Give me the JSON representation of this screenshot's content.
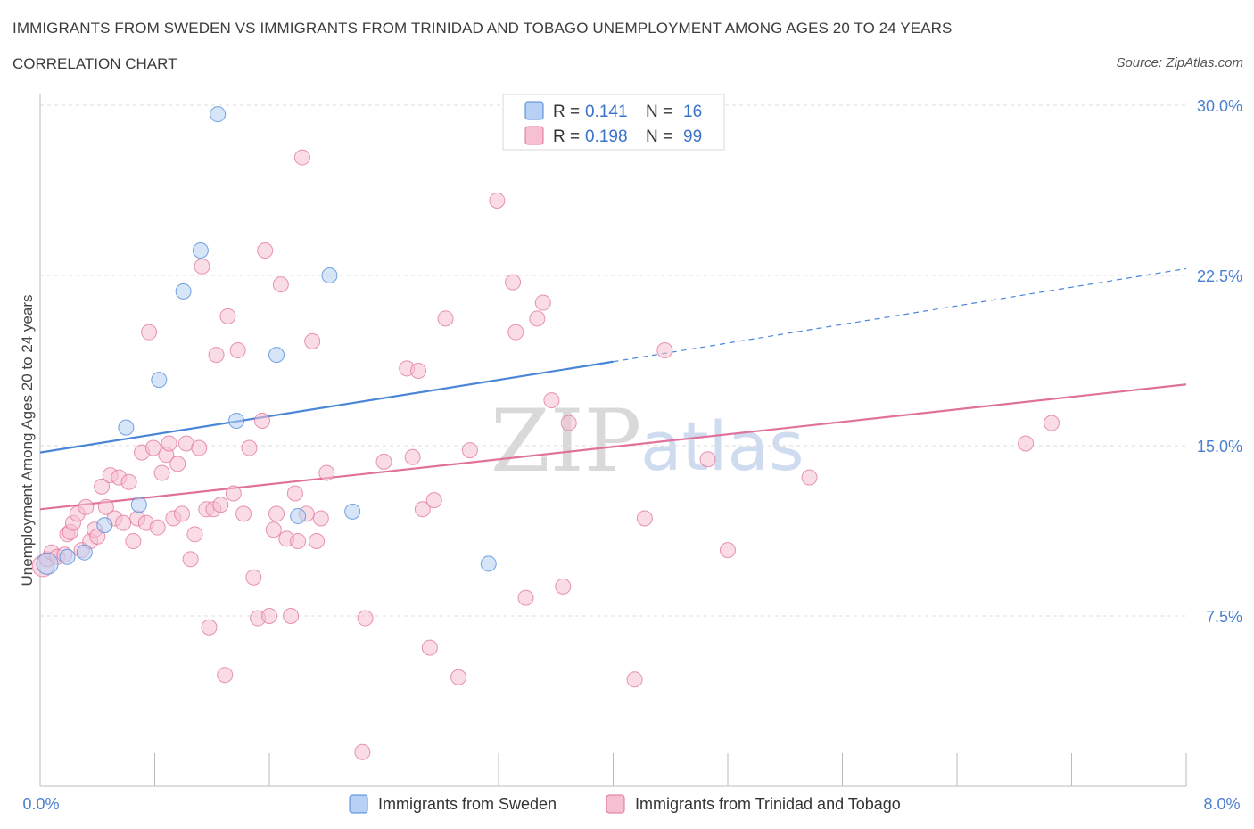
{
  "header": {
    "title": "IMMIGRANTS FROM SWEDEN VS IMMIGRANTS FROM TRINIDAD AND TOBAGO UNEMPLOYMENT AMONG AGES 20 TO 24 YEARS",
    "subtitle": "CORRELATION CHART",
    "source": "Source: ZipAtlas.com"
  },
  "watermark": {
    "zip": "ZIP",
    "atlas": "atlas"
  },
  "colors": {
    "sweden": "#4a86d8",
    "sweden_fill": "#b7d0f3",
    "trinidad": "#e0729a",
    "trinidad_fill": "#f6bfd2",
    "axis_text": "#4a7fcf"
  },
  "legend": {
    "rows": [
      {
        "r_label": "R =",
        "r_value": "0.141",
        "n_label": "N =",
        "n_value": "16"
      },
      {
        "r_label": "R =",
        "r_value": "0.198",
        "n_label": "N =",
        "n_value": "99"
      }
    ]
  },
  "chart_data": {
    "type": "scatter",
    "title": "IMMIGRANTS FROM SWEDEN VS IMMIGRANTS FROM TRINIDAD AND TOBAGO UNEMPLOYMENT AMONG AGES 20 TO 24 YEARS",
    "ylabel": "Unemployment Among Ages 20 to 24 years",
    "xlabel": "",
    "xlim": [
      0,
      8
    ],
    "ylim": [
      0,
      30
    ],
    "x_tick_labels": [
      "0.0%",
      "8.0%"
    ],
    "y_ticks": [
      7.5,
      15.0,
      22.5,
      30.0
    ],
    "y_tick_labels": [
      "7.5%",
      "15.0%",
      "22.5%",
      "30.0%"
    ],
    "grid": true,
    "legend_position": "bottom",
    "series": [
      {
        "name": "Immigrants from Sweden",
        "R": 0.141,
        "N": 16,
        "trend": {
          "x0": 0.0,
          "y0": 14.7,
          "x1": 4.0,
          "y1": 18.7,
          "dash_to_x": 8.0,
          "dash_to_y": 22.8
        },
        "points": [
          [
            0.05,
            9.8
          ],
          [
            0.19,
            10.1
          ],
          [
            0.31,
            10.3
          ],
          [
            0.45,
            11.5
          ],
          [
            0.6,
            15.8
          ],
          [
            0.69,
            12.4
          ],
          [
            0.83,
            17.9
          ],
          [
            1.0,
            21.8
          ],
          [
            1.12,
            23.6
          ],
          [
            1.24,
            29.6
          ],
          [
            1.37,
            16.1
          ],
          [
            1.65,
            19.0
          ],
          [
            1.8,
            11.9
          ],
          [
            2.02,
            22.5
          ],
          [
            2.18,
            12.1
          ],
          [
            3.13,
            9.8
          ]
        ]
      },
      {
        "name": "Immigrants from Trinidad and Tobago",
        "R": 0.198,
        "N": 99,
        "trend": {
          "x0": 0.0,
          "y0": 12.2,
          "x1": 8.0,
          "y1": 17.7
        },
        "points": [
          [
            0.02,
            9.7
          ],
          [
            0.05,
            10.0
          ],
          [
            0.08,
            10.3
          ],
          [
            0.12,
            10.1
          ],
          [
            0.17,
            10.2
          ],
          [
            0.19,
            11.1
          ],
          [
            0.21,
            11.2
          ],
          [
            0.23,
            11.6
          ],
          [
            0.26,
            12.0
          ],
          [
            0.29,
            10.4
          ],
          [
            0.32,
            12.3
          ],
          [
            0.35,
            10.8
          ],
          [
            0.38,
            11.3
          ],
          [
            0.4,
            11.0
          ],
          [
            0.43,
            13.2
          ],
          [
            0.46,
            12.3
          ],
          [
            0.49,
            13.7
          ],
          [
            0.52,
            11.8
          ],
          [
            0.55,
            13.6
          ],
          [
            0.58,
            11.6
          ],
          [
            0.62,
            13.4
          ],
          [
            0.65,
            10.8
          ],
          [
            0.68,
            11.8
          ],
          [
            0.71,
            14.7
          ],
          [
            0.74,
            11.6
          ],
          [
            0.76,
            20.0
          ],
          [
            0.79,
            14.9
          ],
          [
            0.82,
            11.4
          ],
          [
            0.85,
            13.8
          ],
          [
            0.88,
            14.6
          ],
          [
            0.9,
            15.1
          ],
          [
            0.93,
            11.8
          ],
          [
            0.96,
            14.2
          ],
          [
            0.99,
            12.0
          ],
          [
            1.02,
            15.1
          ],
          [
            1.05,
            10.0
          ],
          [
            1.08,
            11.1
          ],
          [
            1.11,
            14.9
          ],
          [
            1.13,
            22.9
          ],
          [
            1.16,
            12.2
          ],
          [
            1.18,
            7.0
          ],
          [
            1.21,
            12.2
          ],
          [
            1.23,
            19.0
          ],
          [
            1.26,
            12.4
          ],
          [
            1.29,
            4.9
          ],
          [
            1.31,
            20.7
          ],
          [
            1.35,
            12.9
          ],
          [
            1.38,
            19.2
          ],
          [
            1.42,
            12.0
          ],
          [
            1.46,
            14.9
          ],
          [
            1.49,
            9.2
          ],
          [
            1.52,
            7.4
          ],
          [
            1.55,
            16.1
          ],
          [
            1.57,
            23.6
          ],
          [
            1.6,
            7.5
          ],
          [
            1.63,
            11.3
          ],
          [
            1.65,
            12.0
          ],
          [
            1.68,
            22.1
          ],
          [
            1.72,
            10.9
          ],
          [
            1.75,
            7.5
          ],
          [
            1.78,
            12.9
          ],
          [
            1.8,
            10.8
          ],
          [
            1.83,
            27.7
          ],
          [
            1.86,
            12.0
          ],
          [
            1.9,
            19.6
          ],
          [
            1.93,
            10.8
          ],
          [
            1.96,
            11.8
          ],
          [
            2.0,
            13.8
          ],
          [
            2.25,
            1.5
          ],
          [
            2.27,
            7.4
          ],
          [
            2.4,
            14.3
          ],
          [
            2.56,
            18.4
          ],
          [
            2.6,
            14.5
          ],
          [
            2.64,
            18.3
          ],
          [
            2.67,
            12.2
          ],
          [
            2.72,
            6.1
          ],
          [
            2.75,
            12.6
          ],
          [
            2.83,
            20.6
          ],
          [
            2.92,
            4.8
          ],
          [
            3.0,
            14.8
          ],
          [
            3.19,
            25.8
          ],
          [
            3.3,
            22.2
          ],
          [
            3.32,
            20.0
          ],
          [
            3.39,
            8.3
          ],
          [
            3.47,
            20.6
          ],
          [
            3.51,
            21.3
          ],
          [
            3.57,
            17.0
          ],
          [
            3.65,
            8.8
          ],
          [
            3.69,
            16.0
          ],
          [
            4.15,
            4.7
          ],
          [
            4.22,
            11.8
          ],
          [
            4.36,
            19.2
          ],
          [
            4.66,
            14.4
          ],
          [
            4.8,
            10.4
          ],
          [
            5.37,
            13.6
          ],
          [
            6.88,
            15.1
          ],
          [
            7.06,
            16.0
          ]
        ]
      }
    ]
  },
  "bottom_legend": {
    "items": [
      "Immigrants from Sweden",
      "Immigrants from Trinidad and Tobago"
    ]
  }
}
